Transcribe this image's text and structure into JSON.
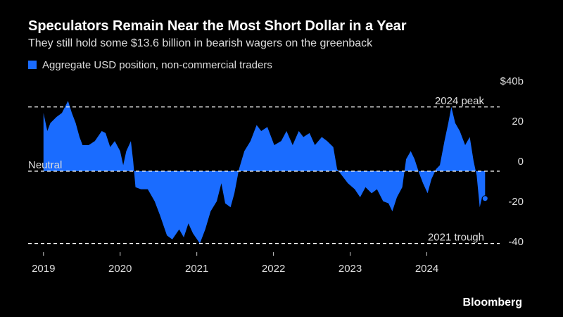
{
  "chart_data": {
    "type": "area",
    "title": "Speculators Remain Near the Most Short Dollar in a Year",
    "subtitle": "They still hold some $13.6 billion in bearish wagers on the greenback",
    "source": "Bloomberg",
    "x": [
      2019.0,
      2019.05,
      2019.09,
      2019.17,
      2019.24,
      2019.32,
      2019.37,
      2019.42,
      2019.47,
      2019.51,
      2019.59,
      2019.67,
      2019.76,
      2019.81,
      2019.87,
      2019.93,
      2020.0,
      2020.04,
      2020.08,
      2020.14,
      2020.17,
      2020.2,
      2020.27,
      2020.36,
      2020.45,
      2020.52,
      2020.61,
      2020.68,
      2020.77,
      2020.83,
      2020.89,
      2020.95,
      2021.04,
      2021.11,
      2021.18,
      2021.26,
      2021.32,
      2021.37,
      2021.44,
      2021.49,
      2021.55,
      2021.62,
      2021.7,
      2021.78,
      2021.84,
      2021.92,
      2022.01,
      2022.1,
      2022.17,
      2022.25,
      2022.33,
      2022.39,
      2022.47,
      2022.54,
      2022.63,
      2022.7,
      2022.78,
      2022.83,
      2022.89,
      2022.97,
      2023.06,
      2023.13,
      2023.2,
      2023.28,
      2023.35,
      2023.43,
      2023.5,
      2023.55,
      2023.61,
      2023.68,
      2023.73,
      2023.79,
      2023.84,
      2023.9,
      2023.95,
      2024.01,
      2024.06,
      2024.12,
      2024.17,
      2024.23,
      2024.28,
      2024.32,
      2024.37,
      2024.43,
      2024.5,
      2024.56,
      2024.61,
      2024.65,
      2024.69,
      2024.72,
      2024.76
    ],
    "series": [
      {
        "name": "Aggregate USD position, non-commercial traders",
        "color": "#1a6cff",
        "values": [
          29,
          20,
          24,
          27,
          29,
          35,
          29,
          24,
          17,
          13,
          13,
          15,
          20,
          19,
          12,
          15,
          10,
          3,
          10,
          15,
          5,
          -8,
          -9,
          -9,
          -15,
          -22,
          -32,
          -34,
          -29,
          -33,
          -26,
          -31,
          -36,
          -29,
          -20,
          -15,
          -6,
          -16,
          -18,
          -11,
          1,
          10,
          15,
          23,
          20,
          22,
          13,
          15,
          20,
          13,
          20,
          17,
          19,
          13,
          17,
          15,
          12,
          1,
          -2,
          -6,
          -9,
          -13,
          -8,
          -11,
          -9,
          -15,
          -16,
          -20,
          -13,
          -8,
          6,
          10,
          6,
          -1,
          -6,
          -11,
          -4,
          1,
          3,
          15,
          24,
          32,
          24,
          20,
          13,
          17,
          5,
          -2,
          -18,
          -13,
          -13.6
        ]
      }
    ],
    "xlim": [
      2018.8,
      2024.95
    ],
    "xticks": [
      2019,
      2020,
      2021,
      2022,
      2023,
      2024
    ],
    "ylim": [
      -40,
      40
    ],
    "yticks": [
      {
        "value": 40,
        "label": "$40b"
      },
      20,
      0,
      -20,
      -40
    ],
    "reference_lines": [
      {
        "label": "2024 peak",
        "value": 32
      },
      {
        "label": "Neutral",
        "value": 0
      },
      {
        "label": "2021 trough",
        "value": -36
      }
    ]
  }
}
